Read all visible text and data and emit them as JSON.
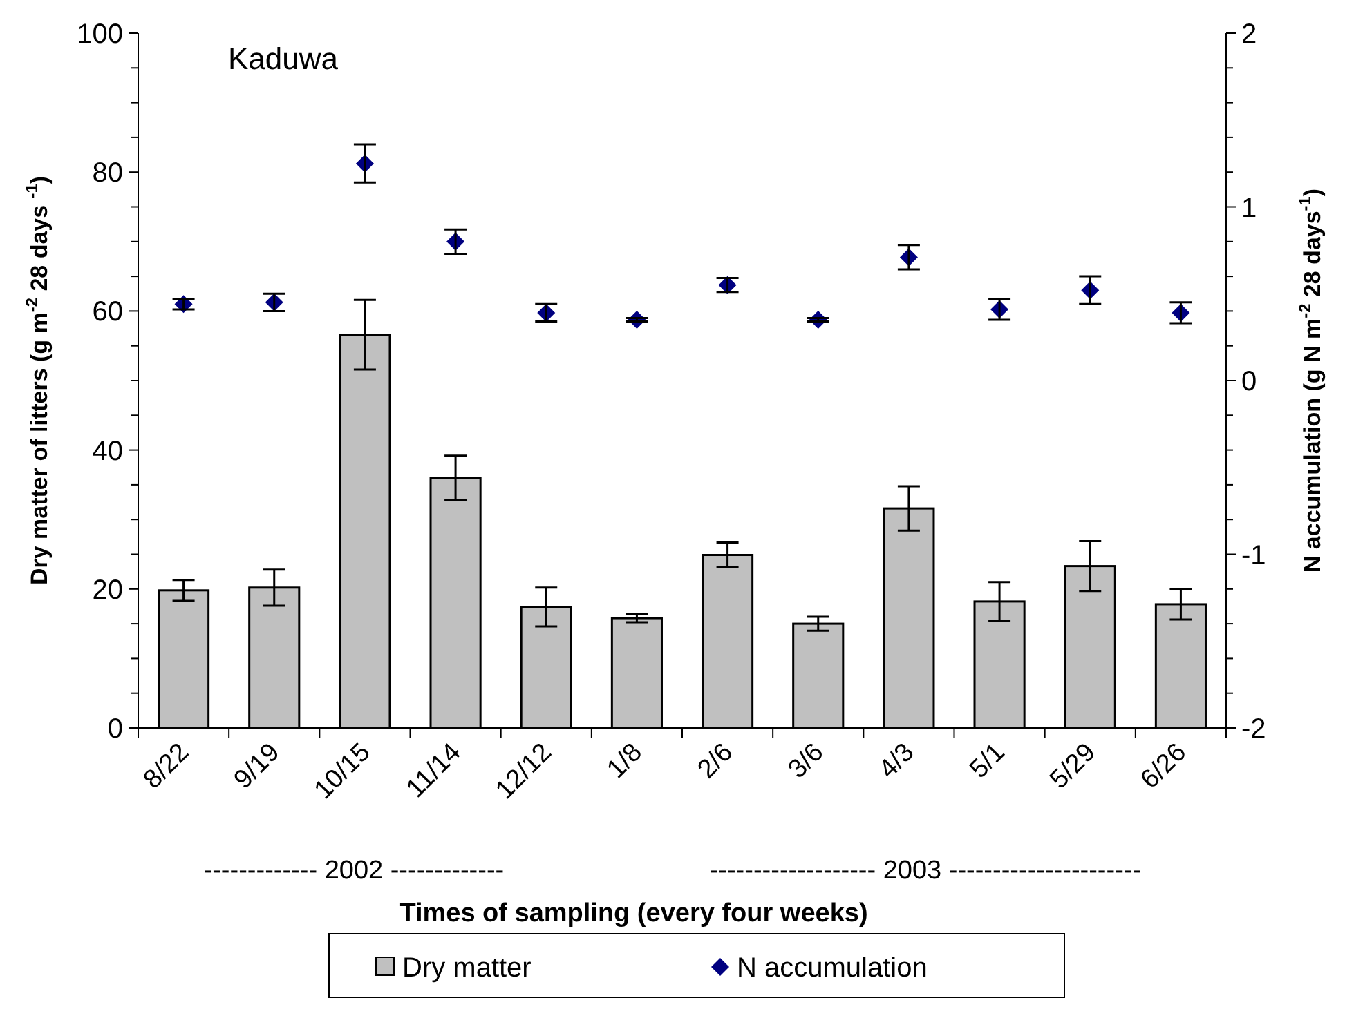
{
  "chart_data": {
    "type": "bar",
    "title": "Kaduwa",
    "xlabel": "Times of sampling (every four weeks)",
    "ylabel": "Dry matter of litters (g m$^{-2}$ 28 days $^{-1}$)",
    "y2label": "N accumulation  (g N m$^{-2}$ 28 days$^{-1}$)",
    "annotations": [
      "------------- 2002 -------------",
      "------------------- 2003 ----------------------"
    ],
    "categories": [
      "8/22",
      "9/19",
      "10/15",
      "11/14",
      "12/12",
      "1/8",
      "2/6",
      "3/6",
      "4/3",
      "5/1",
      "5/29",
      "6/26"
    ],
    "series": [
      {
        "name": "Dry matter",
        "color": "#c0c0c0",
        "values": [
          19.8,
          20.2,
          56.6,
          36.0,
          17.4,
          15.8,
          24.9,
          15.0,
          31.6,
          18.2,
          23.3,
          17.8
        ],
        "errors": [
          1.5,
          2.6,
          5,
          3.2,
          2.8,
          0.6,
          1.8,
          1,
          3.2,
          2.8,
          3.6,
          2.2
        ]
      },
      {
        "name": "N accumulation",
        "type": "scatter",
        "axis": "y2",
        "marker": "diamond",
        "color": "#000080",
        "values": [
          0.44,
          0.45,
          1.25,
          0.8,
          0.39,
          0.35,
          0.55,
          0.35,
          0.71,
          0.41,
          0.52,
          0.39
        ],
        "errors": [
          0.03,
          0.05,
          0.11,
          0.07,
          0.05,
          0.01,
          0.04,
          0.01,
          0.07,
          0.06,
          0.08,
          0.06
        ]
      }
    ],
    "ylim": [
      0,
      100
    ],
    "yticks": [
      0,
      {
        "value": 5,
        "label": null
      },
      {
        "value": 10,
        "label": null
      },
      {
        "value": 15,
        "label": null
      },
      20,
      {
        "value": 25,
        "label": null
      },
      {
        "value": 30,
        "label": null
      },
      {
        "value": 35,
        "label": null
      },
      40,
      {
        "value": 45,
        "label": null
      },
      {
        "value": 50,
        "label": null
      },
      {
        "value": 55,
        "label": null
      },
      60,
      {
        "value": 65,
        "label": null
      },
      {
        "value": 70,
        "label": null
      },
      {
        "value": 75,
        "label": null
      },
      80,
      {
        "value": 85,
        "label": null
      },
      {
        "value": 90,
        "label": null
      },
      {
        "value": 95,
        "label": null
      },
      100
    ],
    "y2lim": [
      -2,
      2
    ],
    "y2ticks": [
      -2,
      {
        "value": -1.8,
        "label": null
      },
      {
        "value": -1.6,
        "label": null
      },
      {
        "value": -1.4,
        "label": null
      },
      {
        "value": -1.2,
        "label": null
      },
      -1,
      {
        "value": -0.8,
        "label": null
      },
      {
        "value": -0.6,
        "label": null
      },
      {
        "value": -0.4,
        "label": null
      },
      {
        "value": -0.2,
        "label": null
      },
      0,
      {
        "value": 0.2,
        "label": null
      },
      {
        "value": 0.4,
        "label": null
      },
      {
        "value": 0.6,
        "label": null
      },
      {
        "value": 0.8,
        "label": null
      },
      1,
      {
        "value": 1.2,
        "label": null
      },
      {
        "value": 1.4,
        "label": null
      },
      {
        "value": 1.6,
        "label": null
      },
      {
        "value": 1.8,
        "label": null
      },
      2
    ],
    "grid": false,
    "legend": "bottom"
  }
}
